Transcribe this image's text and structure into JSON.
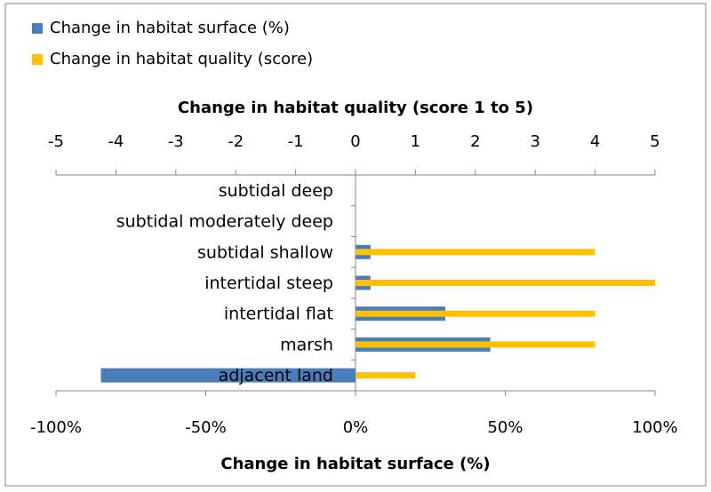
{
  "chart_data": {
    "type": "bar",
    "orientation": "horizontal",
    "x_label": "Change in habitat surface (%)",
    "x2_label": "Change in habitat quality (score 1 to 5)",
    "categories": [
      "subtidal deep",
      "subtidal moderately deep",
      "subtidal shallow",
      "intertidal steep",
      "intertidal flat",
      "marsh",
      "adjacent land"
    ],
    "series": [
      {
        "name": "Change in habitat surface (%)",
        "color": "#4a7ebb",
        "axis": "x",
        "values": [
          0,
          0,
          5,
          5,
          30,
          45,
          -85
        ]
      },
      {
        "name": "Change in habitat quality (score)",
        "color": "#ffc000",
        "axis": "x2",
        "values": [
          0,
          0,
          4,
          5,
          4,
          4,
          1
        ]
      }
    ],
    "xlim": [
      -100,
      100
    ],
    "xticks": [
      {
        "value": -100,
        "label": "-100%"
      },
      {
        "value": -50,
        "label": "-50%"
      },
      {
        "value": 0,
        "label": "0%"
      },
      {
        "value": 50,
        "label": "50%"
      },
      {
        "value": 100,
        "label": "100%"
      }
    ],
    "x2lim": [
      -5,
      5
    ],
    "x2ticks": [
      -5,
      -4,
      -3,
      -2,
      -1,
      0,
      1,
      2,
      3,
      4,
      5
    ],
    "legend": "top-left"
  }
}
